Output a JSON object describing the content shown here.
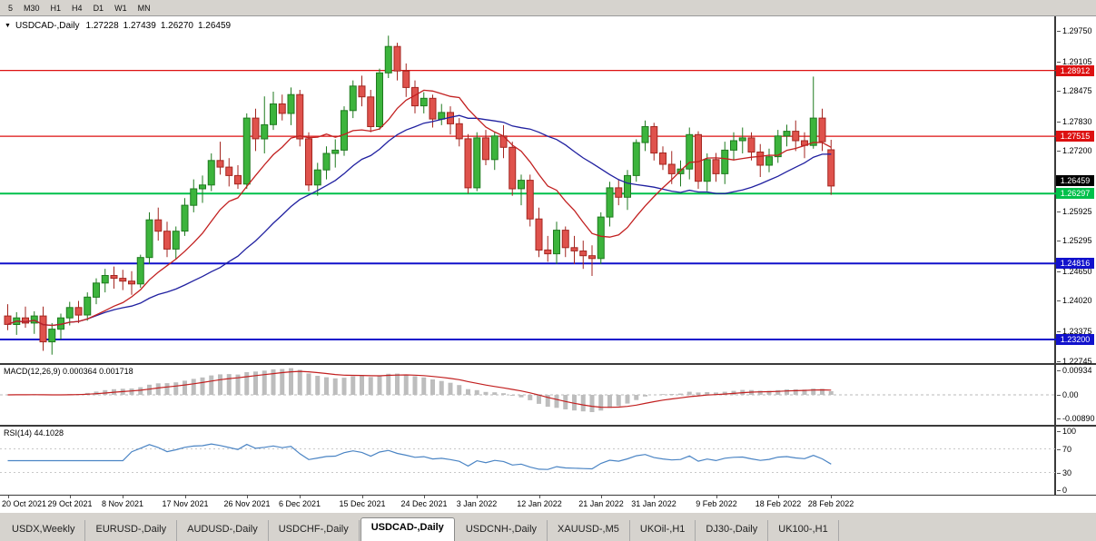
{
  "toolbar": {
    "timeframes": [
      "5",
      "M30",
      "H1",
      "H4",
      "D1",
      "W1",
      "MN"
    ]
  },
  "chart_header": {
    "symbol": "USDCAD-,Daily",
    "open": "1.27228",
    "high": "1.27439",
    "low": "1.26270",
    "close": "1.26459"
  },
  "y_axis": {
    "ticks": [
      "1.29750",
      "1.29105",
      "1.28475",
      "1.27830",
      "1.27200",
      "1.26570",
      "1.25925",
      "1.25295",
      "1.24650",
      "1.24020",
      "1.23375",
      "1.22745"
    ]
  },
  "x_axis": {
    "labels": [
      {
        "text": "20 Oct 2021",
        "index": 0
      },
      {
        "text": "29 Oct 2021",
        "index": 7
      },
      {
        "text": "8 Nov 2021",
        "index": 13
      },
      {
        "text": "17 Nov 2021",
        "index": 20
      },
      {
        "text": "26 Nov 2021",
        "index": 27
      },
      {
        "text": "6 Dec 2021",
        "index": 33
      },
      {
        "text": "15 Dec 2021",
        "index": 40
      },
      {
        "text": "24 Dec 2021",
        "index": 47
      },
      {
        "text": "3 Jan 2022",
        "index": 53
      },
      {
        "text": "12 Jan 2022",
        "index": 60
      },
      {
        "text": "21 Jan 2022",
        "index": 67
      },
      {
        "text": "31 Jan 2022",
        "index": 73
      },
      {
        "text": "9 Feb 2022",
        "index": 80
      },
      {
        "text": "18 Feb 2022",
        "index": 87
      },
      {
        "text": "28 Feb 2022",
        "index": 93
      }
    ]
  },
  "levels": [
    {
      "price": 1.28912,
      "label": "1.28912",
      "color": "#dd1111",
      "width": 1.2
    },
    {
      "price": 1.27515,
      "label": "1.27515",
      "color": "#dd1111",
      "width": 1.2
    },
    {
      "price": 1.26297,
      "label": "1.26297",
      "color": "#00c04a",
      "width": 2
    },
    {
      "price": 1.24816,
      "label": "1.24816",
      "color": "#1111cc",
      "width": 2
    },
    {
      "price": 1.232,
      "label": "1.23200",
      "color": "#1111cc",
      "width": 2
    }
  ],
  "current_price": {
    "price": 1.26459,
    "label": "1.26459",
    "color": "#000000"
  },
  "indicators": {
    "macd": {
      "label": "MACD(12,26,9)",
      "values": "0.000364 0.001718",
      "ticks": [
        "0.00934",
        "0.00",
        "-0.00890"
      ]
    },
    "rsi": {
      "label": "RSI(14)",
      "value": "44.1028",
      "ticks": [
        "100",
        "70",
        "30",
        "0"
      ],
      "levels": [
        70,
        30
      ]
    }
  },
  "tabs": [
    {
      "label": "USDX,Weekly",
      "active": false
    },
    {
      "label": "EURUSD-,Daily",
      "active": false
    },
    {
      "label": "AUDUSD-,Daily",
      "active": false
    },
    {
      "label": "USDCHF-,Daily",
      "active": false
    },
    {
      "label": "USDCAD-,Daily",
      "active": true
    },
    {
      "label": "USDCNH-,Daily",
      "active": false
    },
    {
      "label": "XAUUSD-,M5",
      "active": false
    },
    {
      "label": "UKOil-,H1",
      "active": false
    },
    {
      "label": "DJ30-,Daily",
      "active": false
    },
    {
      "label": "UK100-,H1",
      "active": false
    }
  ],
  "colors": {
    "candle_up": "#3cb43c",
    "candle_up_border": "#1f7a1f",
    "candle_down": "#df524c",
    "candle_down_border": "#a32620",
    "macd_histogram": "#bdbdbd",
    "macd_signal": "#c22020",
    "rsi_line": "#4a84c4",
    "grid": "#c8c8c8"
  },
  "chart_data": {
    "type": "candlestick",
    "symbol": "USDCAD",
    "timeframe": "Daily",
    "title": "USDCAD-,Daily",
    "x_range": [
      "20 Oct 2021",
      "28 Feb 2022"
    ],
    "y_range": [
      1.227,
      1.3006
    ],
    "overlays": [
      {
        "name": "ma-fast",
        "type": "sma",
        "period": 10,
        "color": "#c22020"
      },
      {
        "name": "ma-slow",
        "type": "sma",
        "period": 25,
        "color": "#2020a0"
      }
    ],
    "candles": [
      [
        "2021-10-20",
        1.237,
        1.2395,
        1.234,
        1.2352
      ],
      [
        "2021-10-21",
        1.2352,
        1.2378,
        1.233,
        1.2366
      ],
      [
        "2021-10-22",
        1.2366,
        1.239,
        1.2345,
        1.2355
      ],
      [
        "2021-10-25",
        1.2355,
        1.238,
        1.2332,
        1.237
      ],
      [
        "2021-10-26",
        1.237,
        1.239,
        1.2296,
        1.2315
      ],
      [
        "2021-10-27",
        1.2315,
        1.2355,
        1.2288,
        1.2342
      ],
      [
        "2021-10-28",
        1.2342,
        1.2375,
        1.232,
        1.2366
      ],
      [
        "2021-10-29",
        1.2366,
        1.24,
        1.235,
        1.2388
      ],
      [
        "2021-11-01",
        1.2388,
        1.2402,
        1.2355,
        1.2372
      ],
      [
        "2021-11-02",
        1.2372,
        1.242,
        1.236,
        1.241
      ],
      [
        "2021-11-03",
        1.241,
        1.245,
        1.2395,
        1.244
      ],
      [
        "2021-11-04",
        1.244,
        1.247,
        1.242,
        1.2456
      ],
      [
        "2021-11-05",
        1.2456,
        1.2475,
        1.2428,
        1.245
      ],
      [
        "2021-11-08",
        1.245,
        1.2468,
        1.2425,
        1.2444
      ],
      [
        "2021-11-09",
        1.2444,
        1.2465,
        1.2415,
        1.2438
      ],
      [
        "2021-11-10",
        1.2438,
        1.25,
        1.243,
        1.2494
      ],
      [
        "2021-11-11",
        1.2494,
        1.259,
        1.248,
        1.2574
      ],
      [
        "2021-11-12",
        1.2574,
        1.26,
        1.253,
        1.255
      ],
      [
        "2021-11-15",
        1.255,
        1.257,
        1.2495,
        1.2512
      ],
      [
        "2021-11-16",
        1.2512,
        1.256,
        1.249,
        1.255
      ],
      [
        "2021-11-17",
        1.255,
        1.262,
        1.254,
        1.2605
      ],
      [
        "2021-11-18",
        1.2605,
        1.266,
        1.259,
        1.264
      ],
      [
        "2021-11-19",
        1.264,
        1.2668,
        1.261,
        1.2648
      ],
      [
        "2021-11-22",
        1.2648,
        1.2715,
        1.2635,
        1.27
      ],
      [
        "2021-11-23",
        1.27,
        1.274,
        1.267,
        1.2686
      ],
      [
        "2021-11-24",
        1.2686,
        1.2705,
        1.2645,
        1.2668
      ],
      [
        "2021-11-25",
        1.2668,
        1.269,
        1.264,
        1.265
      ],
      [
        "2021-11-26",
        1.265,
        1.28,
        1.264,
        1.279
      ],
      [
        "2021-11-29",
        1.279,
        1.281,
        1.272,
        1.2746
      ],
      [
        "2021-11-30",
        1.2746,
        1.2836,
        1.2715,
        1.2776
      ],
      [
        "2021-12-01",
        1.2776,
        1.2846,
        1.2765,
        1.282
      ],
      [
        "2021-12-02",
        1.282,
        1.284,
        1.2785,
        1.28
      ],
      [
        "2021-12-03",
        1.28,
        1.2855,
        1.2775,
        1.284
      ],
      [
        "2021-12-06",
        1.284,
        1.285,
        1.273,
        1.2746
      ],
      [
        "2021-12-07",
        1.2746,
        1.276,
        1.2635,
        1.2648
      ],
      [
        "2021-12-08",
        1.2648,
        1.2695,
        1.2625,
        1.268
      ],
      [
        "2021-12-09",
        1.268,
        1.273,
        1.266,
        1.2715
      ],
      [
        "2021-12-10",
        1.2715,
        1.2745,
        1.2685,
        1.2722
      ],
      [
        "2021-12-13",
        1.2722,
        1.2815,
        1.271,
        1.2806
      ],
      [
        "2021-12-14",
        1.2806,
        1.287,
        1.279,
        1.2858
      ],
      [
        "2021-12-15",
        1.2858,
        1.288,
        1.2815,
        1.2835
      ],
      [
        "2021-12-16",
        1.2835,
        1.285,
        1.276,
        1.2772
      ],
      [
        "2021-12-17",
        1.2772,
        1.2895,
        1.2765,
        1.2886
      ],
      [
        "2021-12-20",
        1.2886,
        1.2965,
        1.2875,
        1.2942
      ],
      [
        "2021-12-21",
        1.2942,
        1.295,
        1.287,
        1.289
      ],
      [
        "2021-12-22",
        1.289,
        1.2906,
        1.2835,
        1.2855
      ],
      [
        "2021-12-23",
        1.2855,
        1.287,
        1.28,
        1.2816
      ],
      [
        "2021-12-24",
        1.2816,
        1.2845,
        1.28,
        1.2832
      ],
      [
        "2021-12-27",
        1.2832,
        1.284,
        1.277,
        1.2788
      ],
      [
        "2021-12-28",
        1.2788,
        1.282,
        1.2775,
        1.2802
      ],
      [
        "2021-12-29",
        1.2802,
        1.2815,
        1.2755,
        1.2778
      ],
      [
        "2021-12-30",
        1.2778,
        1.279,
        1.273,
        1.2746
      ],
      [
        "2021-12-31",
        1.2746,
        1.2756,
        1.263,
        1.2642
      ],
      [
        "2022-01-03",
        1.2642,
        1.276,
        1.2635,
        1.2748
      ],
      [
        "2022-01-04",
        1.2748,
        1.2765,
        1.269,
        1.2702
      ],
      [
        "2022-01-05",
        1.2702,
        1.276,
        1.268,
        1.2752
      ],
      [
        "2022-01-06",
        1.2752,
        1.2775,
        1.2705,
        1.2728
      ],
      [
        "2022-01-07",
        1.2728,
        1.274,
        1.2625,
        1.264
      ],
      [
        "2022-01-10",
        1.264,
        1.267,
        1.2605,
        1.2658
      ],
      [
        "2022-01-11",
        1.2658,
        1.267,
        1.256,
        1.2576
      ],
      [
        "2022-01-12",
        1.2576,
        1.26,
        1.2495,
        1.251
      ],
      [
        "2022-01-13",
        1.251,
        1.254,
        1.2485,
        1.2502
      ],
      [
        "2022-01-14",
        1.2502,
        1.257,
        1.248,
        1.2552
      ],
      [
        "2022-01-17",
        1.2552,
        1.256,
        1.2495,
        1.2515
      ],
      [
        "2022-01-18",
        1.2515,
        1.254,
        1.248,
        1.2508
      ],
      [
        "2022-01-19",
        1.2508,
        1.253,
        1.247,
        1.2498
      ],
      [
        "2022-01-20",
        1.2498,
        1.252,
        1.2455,
        1.2492
      ],
      [
        "2022-01-21",
        1.2492,
        1.259,
        1.248,
        1.258
      ],
      [
        "2022-01-24",
        1.258,
        1.2655,
        1.256,
        1.2642
      ],
      [
        "2022-01-25",
        1.2642,
        1.266,
        1.2605,
        1.2622
      ],
      [
        "2022-01-26",
        1.2622,
        1.268,
        1.2595,
        1.2668
      ],
      [
        "2022-01-27",
        1.2668,
        1.2745,
        1.2655,
        1.2738
      ],
      [
        "2022-01-28",
        1.2738,
        1.2785,
        1.272,
        1.2772
      ],
      [
        "2022-01-31",
        1.2772,
        1.278,
        1.27,
        1.2716
      ],
      [
        "2022-02-01",
        1.2716,
        1.273,
        1.268,
        1.2692
      ],
      [
        "2022-02-02",
        1.2692,
        1.272,
        1.265,
        1.2672
      ],
      [
        "2022-02-03",
        1.2672,
        1.27,
        1.2645,
        1.2682
      ],
      [
        "2022-02-04",
        1.2682,
        1.277,
        1.266,
        1.2755
      ],
      [
        "2022-02-07",
        1.2755,
        1.2762,
        1.264,
        1.2656
      ],
      [
        "2022-02-08",
        1.2656,
        1.2715,
        1.2635,
        1.2702
      ],
      [
        "2022-02-09",
        1.2702,
        1.2716,
        1.2655,
        1.2672
      ],
      [
        "2022-02-10",
        1.2672,
        1.274,
        1.265,
        1.2722
      ],
      [
        "2022-02-11",
        1.2722,
        1.276,
        1.27,
        1.2742
      ],
      [
        "2022-02-14",
        1.2742,
        1.277,
        1.2715,
        1.2748
      ],
      [
        "2022-02-15",
        1.2748,
        1.276,
        1.27,
        1.2718
      ],
      [
        "2022-02-16",
        1.2718,
        1.2735,
        1.2665,
        1.269
      ],
      [
        "2022-02-17",
        1.269,
        1.2725,
        1.2675,
        1.2708
      ],
      [
        "2022-02-18",
        1.2708,
        1.2765,
        1.2695,
        1.2752
      ],
      [
        "2022-02-21",
        1.2752,
        1.2776,
        1.273,
        1.2762
      ],
      [
        "2022-02-22",
        1.2762,
        1.2785,
        1.272,
        1.2742
      ],
      [
        "2022-02-23",
        1.2742,
        1.276,
        1.2705,
        1.2732
      ],
      [
        "2022-02-24",
        1.2732,
        1.2878,
        1.2725,
        1.279
      ],
      [
        "2022-02-25",
        1.279,
        1.281,
        1.272,
        1.274
      ],
      [
        "2022-02-28",
        1.27228,
        1.27439,
        1.2627,
        1.26459
      ]
    ]
  }
}
